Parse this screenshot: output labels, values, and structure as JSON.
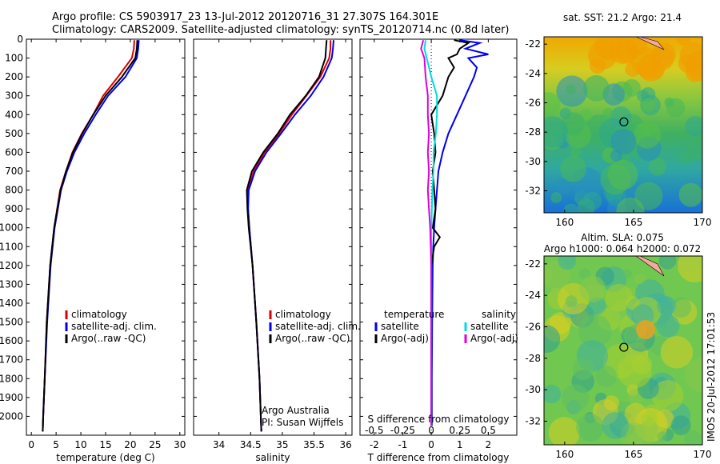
{
  "header": {
    "line1": "Argo profile: CS 5903917_23 13-Jul-2012 20120716_31 27.307S 164.301E",
    "line2": "Climatology: CARS2009. Satellite-adjusted climatology: synTS_20120714.nc (0.8d later)"
  },
  "side_stamp": "IMOS 20-Jul-2012 17:01:53",
  "map_top_title": "sat. SST: 21.2 Argo: 21.4",
  "map_bottom_title_1": "Altim. SLA: 0.075",
  "map_bottom_title_2": "Argo h1000: 0.064 h2000: 0.072",
  "credit_1": "Argo Australia",
  "credit_2": "PI: Susan Wijffels",
  "colors": {
    "climatology": "#dd0000",
    "satellite": "#0000ee",
    "argo": "#000000",
    "sat_salinity": "#00dddd",
    "argo_salinity": "#dd00dd"
  },
  "chart_data": [
    {
      "type": "line",
      "xlabel": "temperature (deg C)",
      "ylabel": "",
      "xlim": [
        -1,
        31
      ],
      "ylim": [
        2100,
        0
      ],
      "xticks": [
        0,
        5,
        10,
        15,
        20,
        25,
        30
      ],
      "yticks": [
        0,
        100,
        200,
        300,
        400,
        500,
        600,
        700,
        800,
        900,
        1000,
        1100,
        1200,
        1300,
        1400,
        1500,
        1600,
        1700,
        1800,
        1900,
        2000
      ],
      "legend": [
        "climatology",
        "satellite-adj. clim.",
        "Argo(..raw -QC)"
      ],
      "series": [
        {
          "name": "climatology",
          "depth": [
            5,
            50,
            100,
            200,
            300,
            400,
            500,
            600,
            700,
            800,
            1000,
            1200,
            1500,
            1800,
            2000,
            2080
          ],
          "values": [
            20.8,
            20.7,
            20.3,
            17.5,
            14.5,
            12.5,
            10.2,
            8.3,
            7.0,
            5.8,
            4.6,
            3.8,
            3.1,
            2.7,
            2.4,
            2.3
          ]
        },
        {
          "name": "satellite-adj. clim.",
          "depth": [
            5,
            50,
            100,
            200,
            300,
            400,
            500,
            600,
            700,
            800,
            1000,
            1200,
            1500,
            1800,
            2000,
            2080
          ],
          "values": [
            21.7,
            21.6,
            21.3,
            19.0,
            15.5,
            13.0,
            10.7,
            8.7,
            7.2,
            6.0,
            4.7,
            3.9,
            3.2,
            2.7,
            2.4,
            2.3
          ]
        },
        {
          "name": "Argo(..raw -QC)",
          "depth": [
            5,
            50,
            100,
            200,
            300,
            400,
            500,
            600,
            700,
            800,
            1000,
            1200,
            1500,
            1800,
            2000,
            2080
          ],
          "values": [
            21.4,
            21.3,
            21.0,
            18.3,
            15.0,
            12.5,
            10.3,
            8.4,
            7.0,
            5.9,
            4.6,
            3.8,
            3.1,
            2.7,
            2.4,
            2.3
          ]
        }
      ]
    },
    {
      "type": "line",
      "xlabel": "salinity",
      "xlim": [
        33.6,
        36.1
      ],
      "ylim": [
        2100,
        0
      ],
      "xticks": [
        34,
        34.5,
        35,
        35.5,
        36
      ],
      "legend": [
        "climatology",
        "satellite-adj. clim.",
        "Argo(..raw -QC)"
      ],
      "series": [
        {
          "name": "climatology",
          "depth": [
            5,
            50,
            100,
            200,
            300,
            400,
            500,
            600,
            700,
            800,
            900,
            1000,
            1200,
            1500,
            1800,
            2000,
            2080
          ],
          "values": [
            35.76,
            35.76,
            35.74,
            35.6,
            35.38,
            35.15,
            34.95,
            34.72,
            34.55,
            34.46,
            34.46,
            34.48,
            34.53,
            34.59,
            34.64,
            34.66,
            34.67
          ]
        },
        {
          "name": "satellite-adj. clim.",
          "depth": [
            5,
            50,
            100,
            200,
            300,
            400,
            500,
            600,
            700,
            800,
            900,
            1000,
            1200,
            1500,
            1800,
            2000,
            2080
          ],
          "values": [
            35.81,
            35.8,
            35.78,
            35.65,
            35.45,
            35.2,
            34.98,
            34.75,
            34.57,
            34.47,
            34.46,
            34.48,
            34.53,
            34.59,
            34.64,
            34.66,
            34.67
          ]
        },
        {
          "name": "Argo(..raw -QC)",
          "depth": [
            5,
            50,
            100,
            200,
            300,
            400,
            500,
            600,
            700,
            800,
            900,
            1000,
            1200,
            1500,
            1800,
            2000,
            2080
          ],
          "values": [
            35.7,
            35.69,
            35.68,
            35.58,
            35.37,
            35.12,
            34.93,
            34.7,
            34.52,
            34.44,
            34.45,
            34.47,
            34.53,
            34.59,
            34.64,
            34.66,
            34.67
          ]
        }
      ]
    },
    {
      "type": "line",
      "xlabel": "T difference from climatology",
      "xlabel_top": "S difference from climatology",
      "xlim": [
        -2.5,
        3
      ],
      "ylim": [
        2100,
        0
      ],
      "xticks": [
        -2,
        -1,
        0,
        1,
        2
      ],
      "xticks_top": [
        -0.5,
        -0.25,
        0,
        0.25,
        0.5
      ],
      "xticks_top_labels": [
        "-0.5",
        "-0.25",
        "0",
        "0.25",
        "0.5"
      ],
      "legend_temperature_title": "temperature",
      "legend_salinity_title": "salinity",
      "legend_labels": [
        "satellite",
        "Argo(-adj)",
        "satellite",
        "Argo(-adj)"
      ],
      "series": [
        {
          "name": "satellite",
          "quantity": "T",
          "depth": [
            5,
            20,
            50,
            80,
            100,
            150,
            200,
            300,
            400,
            500,
            600,
            700,
            800,
            900,
            1000,
            1100,
            1200,
            1500,
            1800,
            2050
          ],
          "values": [
            1.0,
            1.7,
            1.2,
            2.0,
            1.3,
            1.6,
            1.5,
            1.2,
            0.9,
            0.6,
            0.4,
            0.25,
            0.2,
            0.15,
            0.1,
            0.07,
            0.05,
            0.03,
            0.02,
            0.02
          ]
        },
        {
          "name": "Argo(-adj)",
          "quantity": "T",
          "depth": [
            5,
            20,
            50,
            80,
            100,
            150,
            200,
            300,
            400,
            500,
            600,
            700,
            800,
            900,
            1000,
            1050,
            1100,
            1200,
            1500,
            1800,
            2050
          ],
          "values": [
            0.8,
            1.3,
            1.0,
            0.9,
            0.6,
            0.8,
            0.6,
            0.4,
            0.0,
            0.1,
            0.15,
            0.05,
            0.1,
            0.15,
            0.05,
            0.3,
            0.1,
            0.0,
            0.0,
            0.0,
            0.0
          ]
        },
        {
          "name": "satellite",
          "quantity": "S",
          "depth": [
            5,
            50,
            100,
            200,
            300,
            400,
            500,
            600,
            700,
            800,
            1000,
            1200,
            1500,
            2050
          ],
          "values": [
            -0.05,
            -0.06,
            -0.04,
            0.0,
            0.05,
            0.05,
            0.04,
            0.02,
            0.02,
            0.01,
            0.0,
            0.0,
            0.0,
            0.0
          ]
        },
        {
          "name": "Argo(-adj)",
          "quantity": "S",
          "depth": [
            5,
            50,
            100,
            200,
            300,
            400,
            500,
            600,
            700,
            800,
            900,
            1000,
            1200,
            1500,
            2050
          ],
          "values": [
            -0.07,
            -0.09,
            -0.06,
            -0.05,
            -0.03,
            -0.03,
            -0.02,
            -0.03,
            -0.02,
            -0.03,
            -0.02,
            -0.01,
            0.0,
            0.0,
            0.0
          ]
        }
      ]
    },
    {
      "type": "heatmap",
      "title": "sat. SST: 21.2 Argo: 21.4",
      "xlim": [
        158.5,
        170
      ],
      "ylim": [
        -33.5,
        -21.5
      ],
      "xticks": [
        160,
        165,
        170
      ],
      "yticks": [
        -22,
        -24,
        -26,
        -28,
        -30,
        -32
      ],
      "marker": {
        "lon": 164.3,
        "lat": -27.3
      }
    },
    {
      "type": "heatmap",
      "title": "Altim. SLA: 0.075",
      "xlim": [
        158.5,
        170
      ],
      "ylim": [
        -33.5,
        -21.5
      ],
      "xticks": [
        160,
        165,
        170
      ],
      "yticks": [
        -22,
        -24,
        -26,
        -28,
        -30,
        -32
      ],
      "marker": {
        "lon": 164.3,
        "lat": -27.3
      }
    }
  ]
}
